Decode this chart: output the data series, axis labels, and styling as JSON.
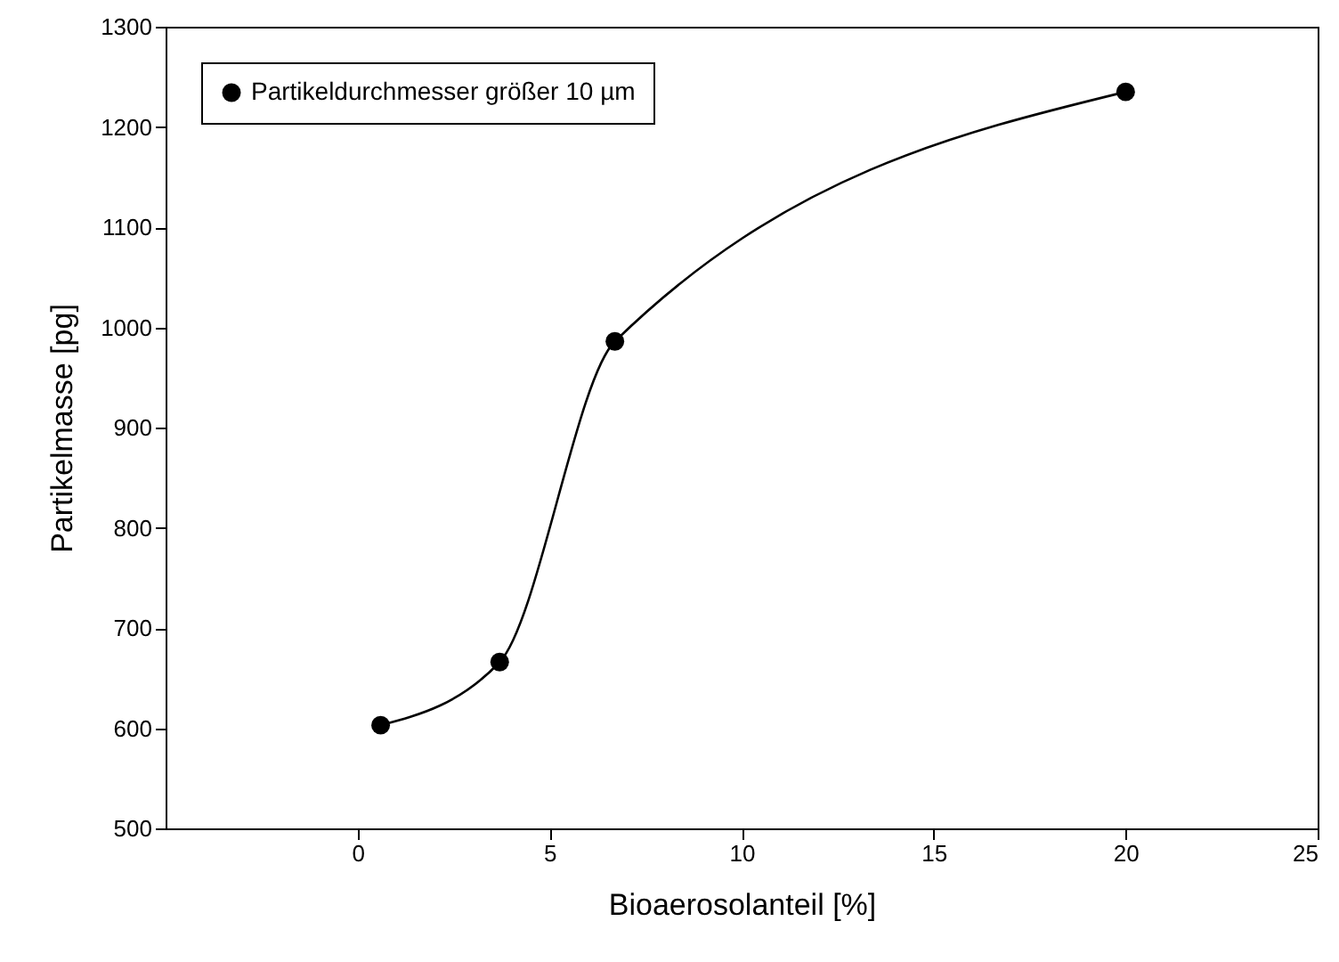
{
  "chart_data": {
    "type": "line",
    "xlabel": "Bioaerosolanteil [%]",
    "ylabel": "Partikelmasse [pg]",
    "x": [
      0.6,
      3.7,
      6.7,
      20
    ],
    "series": [
      {
        "name": "Partikeldurchmesser größer 10 µm",
        "color": "#000000",
        "values": [
          603,
          666,
          986,
          1235
        ]
      }
    ],
    "xlim": [
      -5,
      25
    ],
    "xticks": [
      0,
      5,
      10,
      15,
      20,
      25
    ],
    "ylim": [
      500,
      1300
    ],
    "yticks": [
      500,
      600,
      700,
      800,
      900,
      1000,
      1100,
      1200,
      1300
    ],
    "marker": "circle",
    "line_style": "solid",
    "legend": "top left",
    "grid": false
  }
}
